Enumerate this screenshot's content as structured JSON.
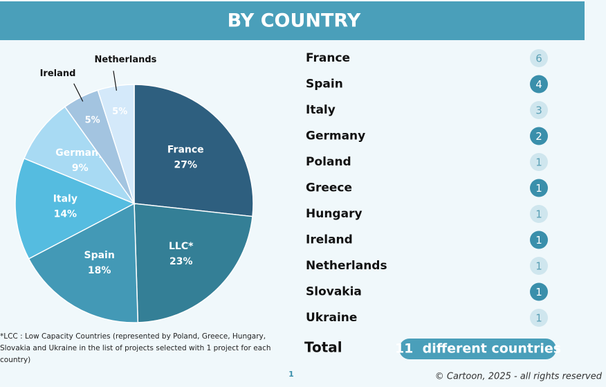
{
  "chart_data": {
    "type": "pie",
    "title": "BY COUNTRY",
    "categories": [
      "France",
      "LLC*",
      "Spain",
      "Italy",
      "Germany",
      "Ireland",
      "Netherlands"
    ],
    "values": [
      27,
      23,
      18,
      14,
      9,
      5,
      5
    ],
    "value_labels": [
      "27%",
      "23%",
      "18%",
      "14%",
      "9%",
      "5%",
      "5%"
    ],
    "colors": [
      "#2e5f7f",
      "#347f96",
      "#4399b6",
      "#55bce0",
      "#a8daf3",
      "#a3c4e0",
      "#d4e9fa"
    ]
  },
  "country_list": {
    "rows": [
      {
        "name": "France",
        "count": 6
      },
      {
        "name": "Spain",
        "count": 4
      },
      {
        "name": "Italy",
        "count": 3
      },
      {
        "name": "Germany",
        "count": 2
      },
      {
        "name": "Poland",
        "count": 1
      },
      {
        "name": "Greece",
        "count": 1
      },
      {
        "name": "Hungary",
        "count": 1
      },
      {
        "name": "Ireland",
        "count": 1
      },
      {
        "name": "Netherlands",
        "count": 1
      },
      {
        "name": "Slovakia",
        "count": 1
      },
      {
        "name": "Ukraine",
        "count": 1
      }
    ],
    "total_label": "Total",
    "total_value": "11  different countries"
  },
  "footnote": "*LCC : Low Capacity Countries (represented by Poland, Greece, Hungary, Slovakia and Ukraine in the list of projects selected with 1 project for each country)",
  "page_number": "1",
  "copyright": "© Cartoon, 2025 - all rights reserved"
}
